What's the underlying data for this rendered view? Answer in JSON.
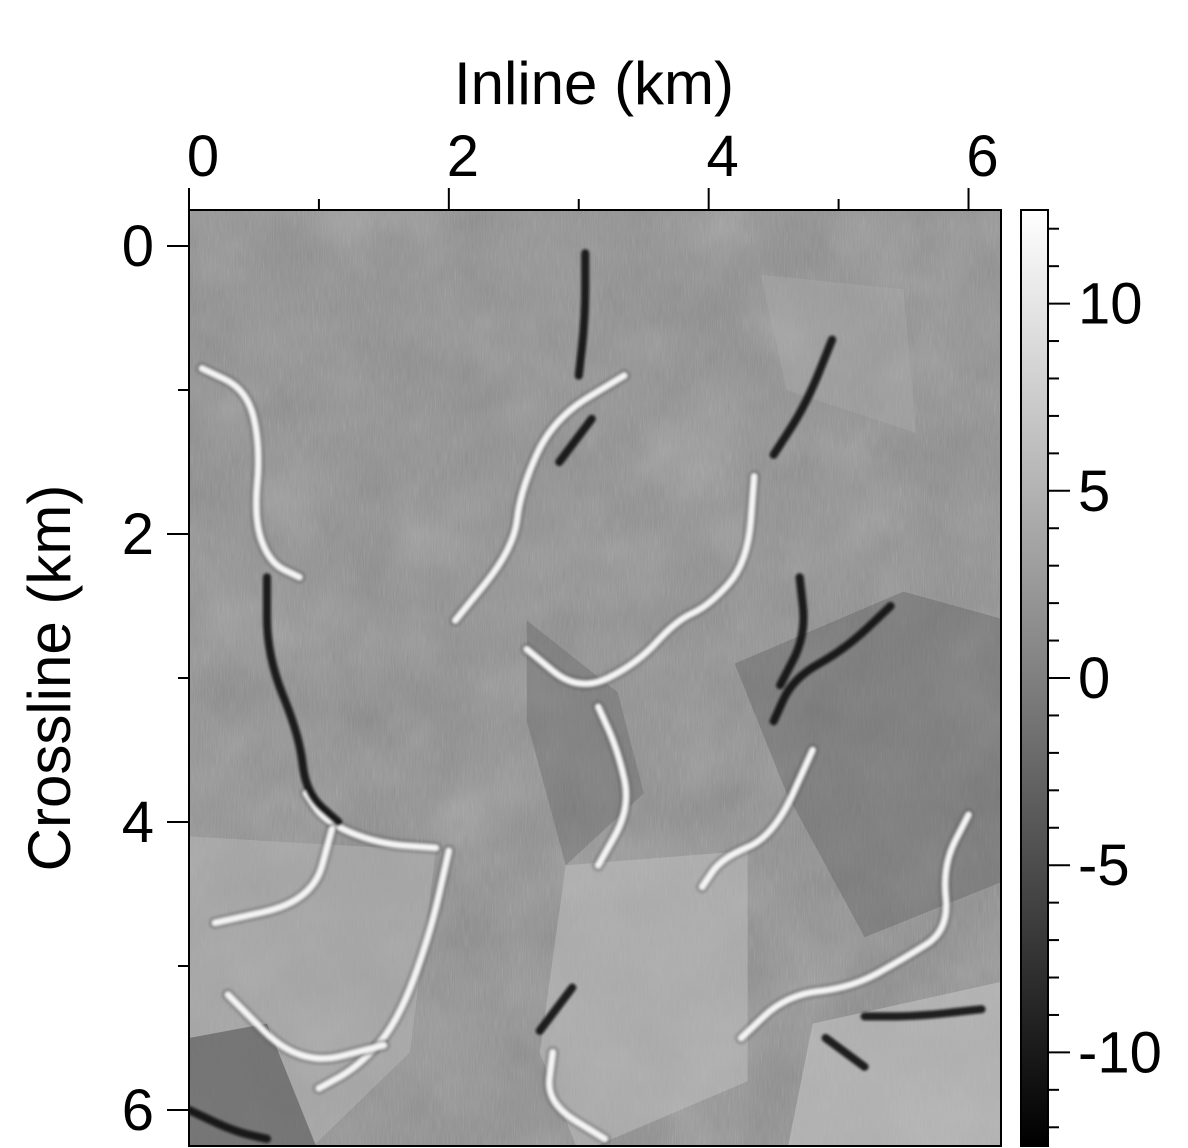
{
  "chart_data": {
    "type": "heatmap",
    "title": "",
    "xlabel": "Inline (km)",
    "ylabel": "Crossline (km)",
    "xlim": [
      0,
      6.25
    ],
    "ylim": [
      6.25,
      -0.25
    ],
    "x_axis_position": "top",
    "y_axis_inverted": true,
    "x_major_ticks": [
      0,
      2,
      4,
      6
    ],
    "x_tick_labels": [
      "0",
      "2",
      "4",
      "6"
    ],
    "x_minor_ticks": [
      1,
      3,
      5
    ],
    "y_major_ticks": [
      0,
      2,
      4,
      6
    ],
    "y_tick_labels": [
      "0",
      "2",
      "4",
      "6"
    ],
    "y_minor_ticks": [
      1,
      3,
      5
    ],
    "colormap": "grayscale",
    "colorbar": {
      "range": [
        -12.5,
        12.5
      ],
      "major_ticks": [
        10,
        5,
        0,
        -5,
        -10
      ],
      "tick_labels": [
        "10",
        "5",
        "0",
        "-5",
        "-10"
      ],
      "minor_step": 1,
      "low_color": "#000000",
      "high_color": "#ffffff",
      "position": "right"
    },
    "grid": false,
    "features": {
      "bright_channels": [
        [
          [
            0.1,
            0.85
          ],
          [
            0.45,
            1.0
          ],
          [
            0.55,
            1.4
          ],
          [
            0.5,
            1.9
          ],
          [
            0.62,
            2.2
          ],
          [
            0.85,
            2.3
          ]
        ],
        [
          [
            0.9,
            3.8
          ],
          [
            1.05,
            4.0
          ],
          [
            1.45,
            4.15
          ],
          [
            1.9,
            4.18
          ]
        ],
        [
          [
            2.0,
            4.2
          ],
          [
            1.85,
            4.8
          ],
          [
            1.6,
            5.4
          ],
          [
            1.3,
            5.7
          ],
          [
            1.0,
            5.85
          ]
        ],
        [
          [
            3.35,
            0.9
          ],
          [
            2.8,
            1.2
          ],
          [
            2.55,
            1.7
          ],
          [
            2.5,
            2.1
          ],
          [
            2.05,
            2.6
          ]
        ],
        [
          [
            4.35,
            1.6
          ],
          [
            4.3,
            2.2
          ],
          [
            4.0,
            2.5
          ],
          [
            3.75,
            2.6
          ],
          [
            3.45,
            2.9
          ],
          [
            3.0,
            3.1
          ],
          [
            2.6,
            2.8
          ]
        ],
        [
          [
            4.8,
            3.5
          ],
          [
            4.5,
            4.1
          ],
          [
            4.1,
            4.25
          ],
          [
            3.95,
            4.45
          ]
        ],
        [
          [
            6.0,
            3.95
          ],
          [
            5.8,
            4.3
          ],
          [
            5.85,
            4.75
          ],
          [
            5.5,
            4.95
          ],
          [
            5.1,
            5.15
          ],
          [
            4.6,
            5.2
          ],
          [
            4.25,
            5.5
          ]
        ],
        [
          [
            2.8,
            5.6
          ],
          [
            2.75,
            5.95
          ],
          [
            3.2,
            6.2
          ]
        ],
        [
          [
            3.15,
            3.2
          ],
          [
            3.3,
            3.5
          ],
          [
            3.4,
            3.9
          ],
          [
            3.15,
            4.3
          ]
        ],
        [
          [
            0.2,
            4.7
          ],
          [
            0.95,
            4.55
          ],
          [
            1.1,
            4.05
          ]
        ],
        [
          [
            0.3,
            5.2
          ],
          [
            0.85,
            5.7
          ],
          [
            1.5,
            5.55
          ]
        ]
      ],
      "dark_channels": [
        [
          [
            0.6,
            2.3
          ],
          [
            0.6,
            2.85
          ],
          [
            0.85,
            3.4
          ],
          [
            0.9,
            3.8
          ],
          [
            1.15,
            4.0
          ]
        ],
        [
          [
            0.0,
            6.0
          ],
          [
            0.35,
            6.15
          ],
          [
            0.6,
            6.2
          ]
        ],
        [
          [
            3.1,
            1.2
          ],
          [
            2.85,
            1.5
          ]
        ],
        [
          [
            4.95,
            0.65
          ],
          [
            4.75,
            1.1
          ],
          [
            4.5,
            1.45
          ]
        ],
        [
          [
            4.7,
            2.3
          ],
          [
            4.75,
            2.7
          ],
          [
            4.55,
            3.05
          ]
        ],
        [
          [
            5.4,
            2.5
          ],
          [
            5.05,
            2.8
          ],
          [
            4.65,
            3.0
          ],
          [
            4.5,
            3.3
          ]
        ],
        [
          [
            2.95,
            5.15
          ],
          [
            2.7,
            5.45
          ]
        ],
        [
          [
            5.2,
            5.35
          ],
          [
            5.6,
            5.35
          ],
          [
            6.1,
            5.3
          ]
        ],
        [
          [
            3.05,
            0.05
          ],
          [
            3.05,
            0.5
          ],
          [
            3.0,
            0.9
          ]
        ],
        [
          [
            4.9,
            5.5
          ],
          [
            5.2,
            5.7
          ]
        ]
      ]
    }
  }
}
